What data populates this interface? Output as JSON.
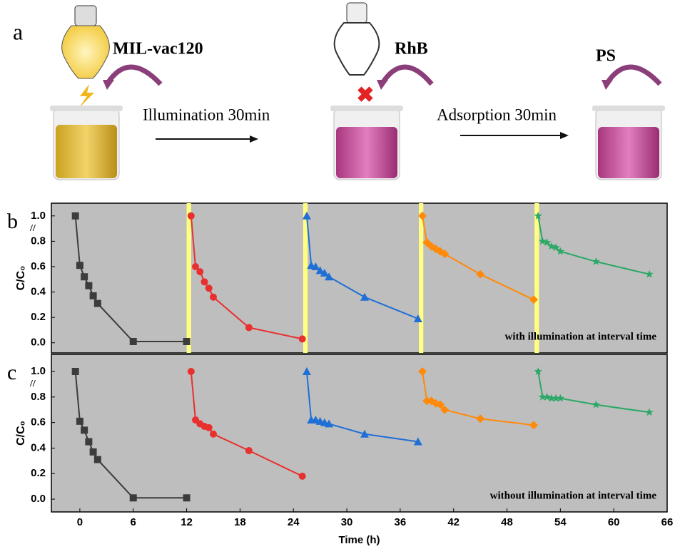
{
  "schematic": {
    "panel_label": "a",
    "catalyst": "MIL-vac120",
    "step1": "Illumination 30min",
    "dye": "RhB",
    "step2": "Adsorption 30min",
    "additive": "PS"
  },
  "chart_data": [
    {
      "type": "line",
      "panel_label": "b",
      "annotation": "with illumination at interval time",
      "ylabel": "C/C₀",
      "xlim": [
        -3.2,
        66
      ],
      "ylim": [
        -0.08,
        1.1
      ],
      "yticks": [
        {
          "value": 0,
          "label": "0.0"
        },
        0.2,
        0.4,
        0.6,
        0.8,
        {
          "value": 1,
          "label": "1.0"
        }
      ],
      "background": "#bebebe",
      "highlight_color": "#ffff80",
      "highlight_spans": [
        [
          12,
          12.5
        ],
        [
          25.1,
          25.6
        ],
        [
          38.1,
          38.6
        ],
        [
          51.1,
          51.6
        ]
      ],
      "series": [
        {
          "color": "#3c3c3c",
          "marker": "square",
          "x": [
            -0.5,
            0,
            0.5,
            1,
            1.5,
            2,
            6,
            12
          ],
          "values": [
            1.0,
            0.61,
            0.52,
            0.45,
            0.37,
            0.31,
            0.01,
            0.01
          ]
        },
        {
          "color": "#e8302e",
          "marker": "circle",
          "x": [
            12.5,
            13,
            13.5,
            14,
            14.5,
            15,
            19,
            25
          ],
          "values": [
            1.0,
            0.6,
            0.56,
            0.48,
            0.43,
            0.36,
            0.12,
            0.03
          ]
        },
        {
          "color": "#1f6fd6",
          "marker": "triangle",
          "x": [
            25.5,
            26,
            26.5,
            27,
            27.5,
            28,
            32,
            38
          ],
          "values": [
            1.0,
            0.61,
            0.6,
            0.57,
            0.55,
            0.52,
            0.36,
            0.19
          ]
        },
        {
          "color": "#ff8a0a",
          "marker": "diamond",
          "x": [
            38.5,
            39,
            39.5,
            40,
            40.5,
            41,
            45,
            51
          ],
          "values": [
            1.0,
            0.79,
            0.76,
            0.74,
            0.72,
            0.7,
            0.54,
            0.34
          ]
        },
        {
          "color": "#2aa865",
          "marker": "star",
          "x": [
            51.5,
            52,
            52.5,
            53,
            53.5,
            54,
            58,
            64
          ],
          "values": [
            1.0,
            0.8,
            0.79,
            0.76,
            0.75,
            0.72,
            0.64,
            0.54
          ]
        }
      ]
    },
    {
      "type": "line",
      "panel_label": "c",
      "annotation": "without illumination at interval time",
      "ylabel": "C/C₀",
      "xlabel": "Time (h)",
      "xlim": [
        -3.2,
        66
      ],
      "ylim": [
        -0.1,
        1.134
      ],
      "xticks": [
        0,
        6,
        12,
        18,
        24,
        30,
        36,
        42,
        48,
        54,
        60,
        66
      ],
      "yticks": [
        {
          "value": 0,
          "label": "0.0"
        },
        0.2,
        0.4,
        0.6,
        0.8,
        {
          "value": 1,
          "label": "1.0"
        }
      ],
      "background": "#bebebe",
      "series": [
        {
          "color": "#3c3c3c",
          "marker": "square",
          "x": [
            -0.5,
            0,
            0.5,
            1,
            1.5,
            2,
            6,
            12
          ],
          "values": [
            1.0,
            0.61,
            0.54,
            0.45,
            0.37,
            0.31,
            0.01,
            0.01
          ]
        },
        {
          "color": "#e8302e",
          "marker": "circle",
          "x": [
            12.5,
            13,
            13.5,
            14,
            14.5,
            15,
            19,
            25
          ],
          "values": [
            1.0,
            0.62,
            0.59,
            0.57,
            0.56,
            0.51,
            0.38,
            0.18
          ]
        },
        {
          "color": "#1f6fd6",
          "marker": "triangle",
          "x": [
            25.5,
            26,
            26.5,
            27,
            27.5,
            28,
            32,
            38
          ],
          "values": [
            1.0,
            0.62,
            0.62,
            0.61,
            0.6,
            0.59,
            0.51,
            0.45
          ]
        },
        {
          "color": "#ff8a0a",
          "marker": "diamond",
          "x": [
            38.5,
            39,
            39.5,
            40,
            40.5,
            41,
            45,
            51
          ],
          "values": [
            1.0,
            0.77,
            0.77,
            0.75,
            0.74,
            0.7,
            0.63,
            0.58
          ]
        },
        {
          "color": "#2aa865",
          "marker": "star",
          "x": [
            51.5,
            52,
            52.5,
            53,
            53.5,
            54,
            58,
            64
          ],
          "values": [
            1.0,
            0.8,
            0.8,
            0.79,
            0.79,
            0.79,
            0.74,
            0.68
          ]
        }
      ]
    }
  ]
}
